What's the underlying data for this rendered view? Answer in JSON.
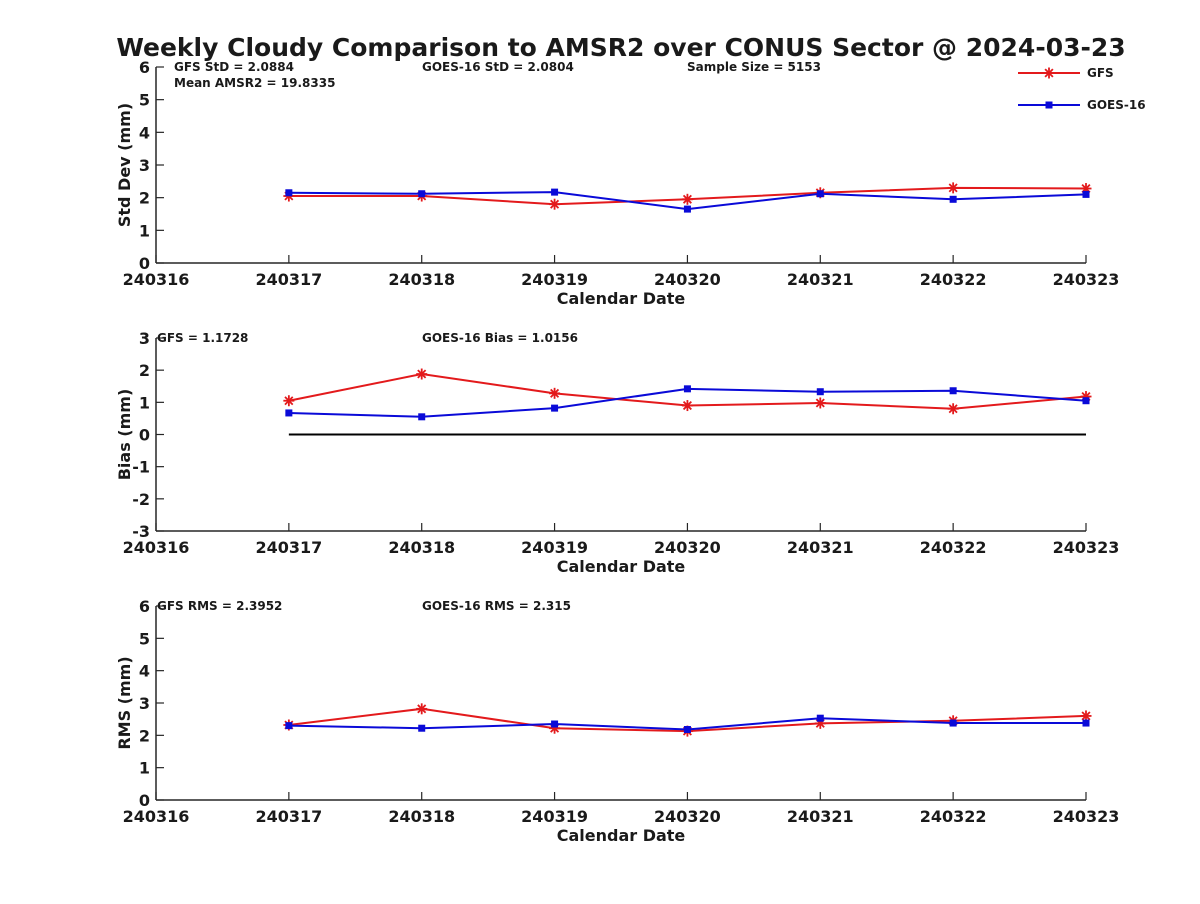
{
  "chart_data": {
    "type": "line",
    "title": "Weekly Cloudy Comparison to AMSR2 over CONUS Sector @ 2024-03-23",
    "colors": {
      "GFS": "#e31a1c",
      "GOES-16": "#0a0ad8",
      "zero_line": "#000000"
    },
    "legend": {
      "placement": "top-right",
      "entries": [
        {
          "name": "GFS",
          "color": "#e31a1c",
          "marker": "asterisk"
        },
        {
          "name": "GOES-16",
          "color": "#0a0ad8",
          "marker": "square"
        }
      ]
    },
    "panels": [
      {
        "id": "std",
        "ylabel": "Std Dev (mm)",
        "xlabel": "Calendar Date",
        "xlim": [
          "240316",
          "240323"
        ],
        "ylim": [
          0,
          6
        ],
        "yticks": [
          "0",
          "1",
          "2",
          "3",
          "4",
          "5",
          "6"
        ],
        "xticks": [
          "240316",
          "240317",
          "240318",
          "240319",
          "240320",
          "240321",
          "240322",
          "240323"
        ],
        "x": [
          "240317",
          "240318",
          "240319",
          "240320",
          "240321",
          "240322",
          "240323"
        ],
        "series": [
          {
            "name": "GFS",
            "values": [
              2.05,
              2.05,
              1.8,
              1.95,
              2.15,
              2.3,
              2.28
            ]
          },
          {
            "name": "GOES-16",
            "values": [
              2.15,
              2.12,
              2.17,
              1.65,
              2.12,
              1.95,
              2.1
            ]
          }
        ],
        "zero_line": false,
        "annotations": {
          "gfs": "GFS StD = 2.0884",
          "goes": "GOES-16 StD = 2.0804",
          "sample": "Sample Size = 5153",
          "mean": "Mean AMSR2 = 19.8335"
        }
      },
      {
        "id": "bias",
        "ylabel": "Bias (mm)",
        "xlabel": "Calendar Date",
        "xlim": [
          "240316",
          "240323"
        ],
        "ylim": [
          -3,
          3
        ],
        "yticks": [
          "-3",
          "-2",
          "-1",
          "0",
          "1",
          "2",
          "3"
        ],
        "xticks": [
          "240316",
          "240317",
          "240318",
          "240319",
          "240320",
          "240321",
          "240322",
          "240323"
        ],
        "x": [
          "240317",
          "240318",
          "240319",
          "240320",
          "240321",
          "240322",
          "240323"
        ],
        "series": [
          {
            "name": "GFS",
            "values": [
              1.05,
              1.88,
              1.28,
              0.9,
              0.98,
              0.8,
              1.18
            ]
          },
          {
            "name": "GOES-16",
            "values": [
              0.67,
              0.55,
              0.82,
              1.42,
              1.33,
              1.36,
              1.05
            ]
          }
        ],
        "zero_line": true,
        "annotations": {
          "gfs": "GFS = 1.1728",
          "goes": "GOES-16 Bias  = 1.0156"
        }
      },
      {
        "id": "rms",
        "ylabel": "RMS (mm)",
        "xlabel": "Calendar Date",
        "xlim": [
          "240316",
          "240323"
        ],
        "ylim": [
          0,
          6
        ],
        "yticks": [
          "0",
          "1",
          "2",
          "3",
          "4",
          "5",
          "6"
        ],
        "xticks": [
          "240316",
          "240317",
          "240318",
          "240319",
          "240320",
          "240321",
          "240322",
          "240323"
        ],
        "x": [
          "240317",
          "240318",
          "240319",
          "240320",
          "240321",
          "240322",
          "240323"
        ],
        "series": [
          {
            "name": "GFS",
            "values": [
              2.32,
              2.82,
              2.22,
              2.13,
              2.37,
              2.45,
              2.6
            ]
          },
          {
            "name": "GOES-16",
            "values": [
              2.3,
              2.22,
              2.35,
              2.18,
              2.53,
              2.38,
              2.38
            ]
          }
        ],
        "zero_line": false,
        "annotations": {
          "gfs": "GFS RMS = 2.3952",
          "goes": "GOES-16 RMS = 2.315"
        }
      }
    ]
  }
}
